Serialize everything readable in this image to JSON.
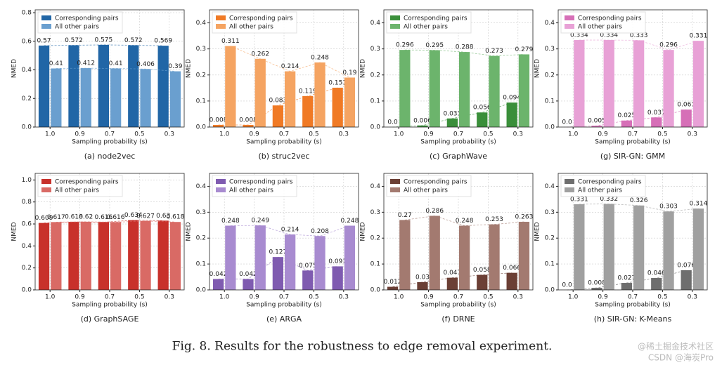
{
  "chart_data": [
    {
      "type": "bar",
      "title": "(a) node2vec",
      "xlabel": "Sampling probability (s)",
      "ylabel": "NMED",
      "categories": [
        "1.0",
        "0.9",
        "0.7",
        "0.5",
        "0.3"
      ],
      "series": [
        {
          "name": "Corresponding pairs",
          "color": "#2166a6",
          "values": [
            0.57,
            0.572,
            0.575,
            0.572,
            0.569
          ],
          "value_labels": [
            "0.57",
            "0.572",
            "0.575",
            "0.572",
            "0.569"
          ]
        },
        {
          "name": "All other pairs",
          "color": "#6a9fcf",
          "values": [
            0.41,
            0.412,
            0.41,
            0.406,
            0.39
          ],
          "value_labels": [
            "0.41",
            "0.412",
            "0.41",
            "0.406",
            "0.39"
          ]
        }
      ],
      "ylim": [
        0,
        0.82
      ],
      "yticks": [
        {
          "value": 0,
          "label": "0.0"
        },
        0.2,
        0.4,
        0.6,
        0.8
      ],
      "grid": true,
      "legend": "upper-left"
    },
    {
      "type": "bar",
      "title": "(b) struc2vec",
      "xlabel": "Sampling probability (s)",
      "ylabel": "NMED",
      "categories": [
        "1.0",
        "0.9",
        "0.7",
        "0.5",
        "0.3"
      ],
      "series": [
        {
          "name": "Corresponding pairs",
          "color": "#f07a25",
          "values": [
            0.008,
            0.008,
            0.083,
            0.119,
            0.151
          ],
          "value_labels": [
            "0.008",
            "0.008",
            "0.083",
            "0.119",
            "0.151"
          ]
        },
        {
          "name": "All other pairs",
          "color": "#f5a462",
          "values": [
            0.311,
            0.262,
            0.214,
            0.248,
            0.19
          ],
          "value_labels": [
            "0.311",
            "0.262",
            "0.214",
            "0.248",
            "0.19"
          ]
        }
      ],
      "ylim": [
        0,
        0.45
      ],
      "yticks": [
        {
          "value": 0,
          "label": "0.0"
        },
        0.1,
        0.2,
        0.3,
        0.4
      ],
      "grid": true,
      "legend": "upper-left"
    },
    {
      "type": "bar",
      "title": "(c) GraphWave",
      "xlabel": "Sampling probability (s)",
      "ylabel": "NMED",
      "categories": [
        "1.0",
        "0.9",
        "0.7",
        "0.5",
        "0.3"
      ],
      "series": [
        {
          "name": "Corresponding pairs",
          "color": "#3a8f3a",
          "values": [
            0,
            0.006,
            0.033,
            0.056,
            0.094
          ],
          "value_labels": [
            "0.0",
            "0.006",
            "0.033",
            "0.056",
            "0.094"
          ]
        },
        {
          "name": "All other pairs",
          "color": "#6cb46c",
          "values": [
            0.296,
            0.295,
            0.288,
            0.273,
            0.279
          ],
          "value_labels": [
            "0.296",
            "0.295",
            "0.288",
            "0.273",
            "0.279"
          ]
        }
      ],
      "ylim": [
        0,
        0.45
      ],
      "yticks": [
        {
          "value": 0,
          "label": "0.0"
        },
        0.1,
        0.2,
        0.3,
        0.4
      ],
      "grid": true,
      "legend": "upper-left"
    },
    {
      "type": "bar",
      "title": "(g) SIR-GN: GMM",
      "xlabel": "Sampling probability (s)",
      "ylabel": "NMED",
      "categories": [
        "1.0",
        "0.9",
        "0.7",
        "0.5",
        "0.3"
      ],
      "series": [
        {
          "name": "Corresponding pairs",
          "color": "#d66fb7",
          "values": [
            0,
            0.005,
            0.025,
            0.037,
            0.067
          ],
          "value_labels": [
            "0.0",
            "0.005",
            "0.025",
            "0.037",
            "0.067"
          ]
        },
        {
          "name": "All other pairs",
          "color": "#e8a1d6",
          "values": [
            0.334,
            0.334,
            0.333,
            0.296,
            0.331
          ],
          "value_labels": [
            "0.334",
            "0.334",
            "0.333",
            "0.296",
            "0.331"
          ]
        }
      ],
      "ylim": [
        0,
        0.45
      ],
      "yticks": [
        {
          "value": 0,
          "label": "0.0"
        },
        0.1,
        0.2,
        0.3,
        0.4
      ],
      "grid": true,
      "legend": "upper-left"
    },
    {
      "type": "bar",
      "title": "(d) GraphSAGE",
      "xlabel": "Sampling probability (s)",
      "ylabel": "NMED",
      "categories": [
        "1.0",
        "0.9",
        "0.7",
        "0.5",
        "0.3"
      ],
      "series": [
        {
          "name": "Corresponding pairs",
          "color": "#c8312b",
          "values": [
            0.609,
            0.618,
            0.616,
            0.634,
            0.63
          ],
          "value_labels": [
            "0.609",
            "0.618",
            "0.616",
            "0.634",
            "0.63"
          ]
        },
        {
          "name": "All other pairs",
          "color": "#d96a65",
          "values": [
            0.617,
            0.62,
            0.616,
            0.627,
            0.618
          ],
          "value_labels": [
            "0.617",
            "0.62",
            "0.616",
            "0.627",
            "0.618"
          ]
        }
      ],
      "ylim": [
        0,
        1.06
      ],
      "yticks": [
        {
          "value": 0,
          "label": "0.0"
        },
        0.2,
        0.4,
        0.6,
        0.8,
        {
          "value": 1,
          "label": "1.0"
        }
      ],
      "grid": true,
      "legend": "upper-left"
    },
    {
      "type": "bar",
      "title": "(e) ARGA",
      "xlabel": "Sampling probability (s)",
      "ylabel": "NMED",
      "categories": [
        "1.0",
        "0.9",
        "0.7",
        "0.5",
        "0.3"
      ],
      "series": [
        {
          "name": "Corresponding pairs",
          "color": "#7f5bb0",
          "values": [
            0.042,
            0.042,
            0.127,
            0.075,
            0.091
          ],
          "value_labels": [
            "0.042",
            "0.042",
            "0.127",
            "0.075",
            "0.091"
          ]
        },
        {
          "name": "All other pairs",
          "color": "#a88bd0",
          "values": [
            0.248,
            0.249,
            0.214,
            0.208,
            0.248
          ],
          "value_labels": [
            "0.248",
            "0.249",
            "0.214",
            "0.208",
            "0.248"
          ]
        }
      ],
      "ylim": [
        0,
        0.45
      ],
      "yticks": [
        {
          "value": 0,
          "label": "0.0"
        },
        0.1,
        0.2,
        0.3,
        0.4
      ],
      "grid": true,
      "legend": "upper-left"
    },
    {
      "type": "bar",
      "title": "(f) DRNE",
      "xlabel": "Sampling probability (s)",
      "ylabel": "NMED",
      "categories": [
        "1.0",
        "0.9",
        "0.7",
        "0.5",
        "0.3"
      ],
      "series": [
        {
          "name": "Corresponding pairs",
          "color": "#6b3f35",
          "values": [
            0.012,
            0.03,
            0.047,
            0.058,
            0.066
          ],
          "value_labels": [
            "0.012",
            "0.03",
            "0.047",
            "0.058",
            "0.066"
          ]
        },
        {
          "name": "All other pairs",
          "color": "#a37a70",
          "values": [
            0.27,
            0.286,
            0.248,
            0.253,
            0.263
          ],
          "value_labels": [
            "0.27",
            "0.286",
            "0.248",
            "0.253",
            "0.263"
          ]
        }
      ],
      "ylim": [
        0,
        0.45
      ],
      "yticks": [
        {
          "value": 0,
          "label": "0.0"
        },
        0.1,
        0.2,
        0.3,
        0.4
      ],
      "grid": true,
      "legend": "upper-left"
    },
    {
      "type": "bar",
      "title": "(h) SIR-GN: K-Means",
      "xlabel": "Sampling probability (s)",
      "ylabel": "NMED",
      "categories": [
        "1.0",
        "0.9",
        "0.7",
        "0.5",
        "0.3"
      ],
      "series": [
        {
          "name": "Corresponding pairs",
          "color": "#6e6e6e",
          "values": [
            0,
            0.008,
            0.027,
            0.046,
            0.076
          ],
          "value_labels": [
            "0.0",
            "0.008",
            "0.027",
            "0.046",
            "0.076"
          ]
        },
        {
          "name": "All other pairs",
          "color": "#a0a0a0",
          "values": [
            0.331,
            0.332,
            0.326,
            0.303,
            0.314
          ],
          "value_labels": [
            "0.331",
            "0.332",
            "0.326",
            "0.303",
            "0.314"
          ]
        }
      ],
      "ylim": [
        0,
        0.45
      ],
      "yticks": [
        {
          "value": 0,
          "label": "0.0"
        },
        0.1,
        0.2,
        0.3,
        0.4
      ],
      "grid": true,
      "legend": "upper-left"
    }
  ],
  "caption": "Fig. 8.  Results for the robustness to edge removal experiment.",
  "watermark": [
    "@稀土掘金技术社区",
    "CSDN @海炭Pro"
  ]
}
